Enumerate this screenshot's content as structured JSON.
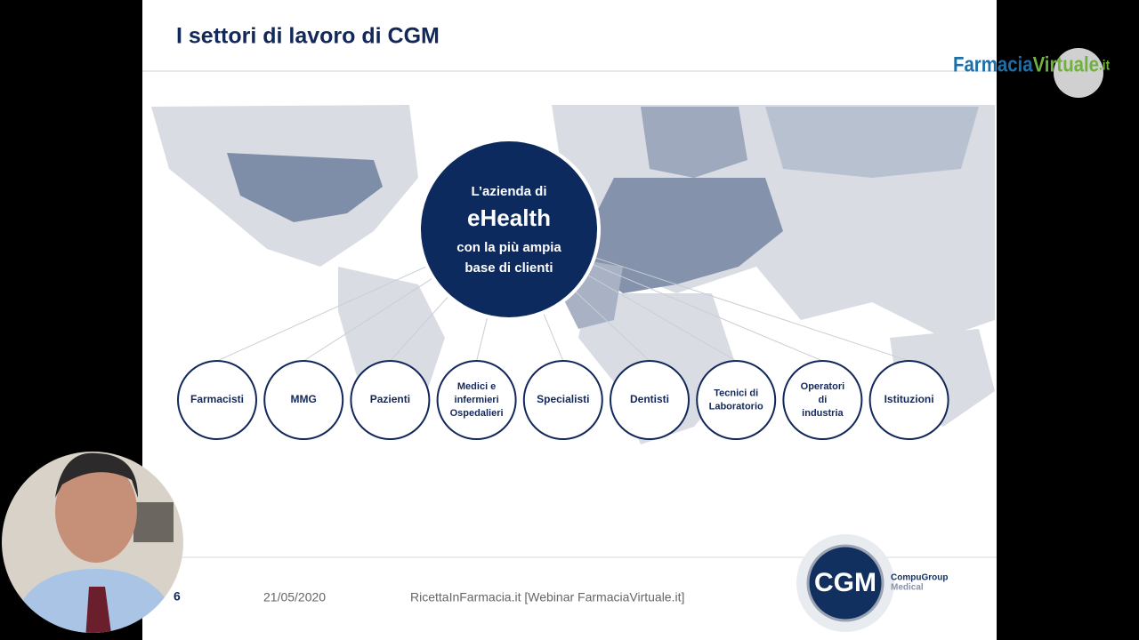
{
  "slide": {
    "title": "I settori di lavoro di CGM",
    "center": [
      "L’azienda di",
      "eHealth",
      "con la più ampia",
      "base di clienti"
    ],
    "sectors": [
      [
        "Farmacisti"
      ],
      [
        "MMG"
      ],
      [
        "Pazienti"
      ],
      [
        "Medici e",
        "infermieri",
        "Ospedalieri"
      ],
      [
        "Specialisti"
      ],
      [
        "Dentisti"
      ],
      [
        "Tecnici di",
        "Laboratorio"
      ],
      [
        "Operatori",
        "di",
        "industria"
      ],
      [
        "Istituzioni"
      ]
    ],
    "page_number": "6",
    "date": "21/05/2020",
    "footer_source": "RicettaInFarmacia.it [Webinar FarmaciaVirtuale.it]",
    "logo": {
      "mark": "CGM",
      "name": [
        "CompuGroup",
        "Medical"
      ]
    }
  },
  "overlay": {
    "brand": [
      "Farmacia",
      "Virtuale",
      ".it"
    ]
  }
}
